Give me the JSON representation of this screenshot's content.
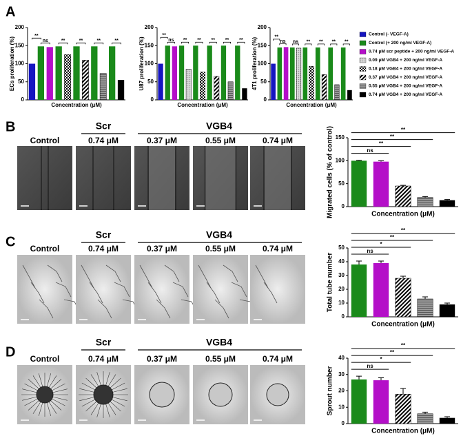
{
  "panels": [
    "A",
    "B",
    "C",
    "D"
  ],
  "legend": [
    {
      "name": "Control (- VEGF-A)",
      "fill": "#1515c0"
    },
    {
      "name": "Control (+ 200 ng/ml VEGF-A)",
      "fill": "#1a8a1a"
    },
    {
      "name": "0.74 μM scr peptide + 200 ng/ml VEGF-A",
      "fill": "#b40fc8"
    },
    {
      "name": "0.09 μM VGB4 + 200 ng/ml VEGF-A",
      "fill": "dots"
    },
    {
      "name": "0.18 μM VGB4 + 200 ng/ml VEGF-A",
      "fill": "checker"
    },
    {
      "name": "0.37 μM VGB4 + 200 ng/ml VEGF-A",
      "fill": "stripe"
    },
    {
      "name": "0.55 μM VGB4 + 200 ng/ml VEGF-A",
      "fill": "gray"
    },
    {
      "name": "0.74 μM VGB4 + 200 ng/ml VEGF-A",
      "fill": "#000000"
    }
  ],
  "image_rows": [
    {
      "groups": [
        "Scr",
        "VGB4"
      ],
      "labels": [
        "Control",
        "0.74 μM",
        "0.37 μM",
        "0.55 μM",
        "0.74 μM"
      ]
    },
    {
      "groups": [
        "Scr",
        "VGB4"
      ],
      "labels": [
        "Control",
        "0.74 μM",
        "0.37 μM",
        "0.55 μM",
        "0.74 μM"
      ]
    },
    {
      "groups": [
        "Scr",
        "VGB4"
      ],
      "labels": [
        "Control",
        "0.74 μM",
        "0.37 μM",
        "0.55 μM",
        "0.74 μM"
      ]
    }
  ],
  "chart_data": [
    {
      "type": "bar",
      "ylabel": "ECs proliferation (%)",
      "xlabel": "Concentration (μM)",
      "values": [
        100,
        148,
        146,
        148,
        125,
        148,
        110,
        148,
        73,
        148,
        55
      ],
      "fills": [
        "#1515c0",
        "#1a8a1a",
        "#b40fc8",
        "#1a8a1a",
        "checker",
        "#1a8a1a",
        "stripe",
        "#1a8a1a",
        "gray",
        "#1a8a1a",
        "#000000"
      ],
      "annotations": [
        "**",
        "ns",
        "**",
        "**",
        "**",
        "**"
      ],
      "ylim": [
        0,
        200
      ],
      "yticks": [
        0,
        50,
        100,
        150,
        200
      ]
    },
    {
      "type": "bar",
      "ylabel": "U87 proliferation (%)",
      "xlabel": "Concentration (μM)",
      "values": [
        100,
        150,
        148,
        150,
        85,
        150,
        77,
        150,
        65,
        150,
        50,
        150,
        32
      ],
      "fills": [
        "#1515c0",
        "#1a8a1a",
        "#b40fc8",
        "#1a8a1a",
        "dots",
        "#1a8a1a",
        "checker",
        "#1a8a1a",
        "stripe",
        "#1a8a1a",
        "gray",
        "#1a8a1a",
        "#000000"
      ],
      "annotations": [
        "**",
        "ns",
        "**",
        "**",
        "**",
        "**",
        "**"
      ],
      "ylim": [
        0,
        200
      ],
      "yticks": [
        0,
        50,
        100,
        150,
        200
      ]
    },
    {
      "type": "bar",
      "ylabel": "4T1 proliferation (%)",
      "xlabel": "Concentration (μM)",
      "values": [
        100,
        145,
        146,
        145,
        143,
        145,
        93,
        145,
        70,
        145,
        42,
        145,
        27
      ],
      "fills": [
        "#1515c0",
        "#1a8a1a",
        "#b40fc8",
        "#1a8a1a",
        "dots",
        "#1a8a1a",
        "checker",
        "#1a8a1a",
        "stripe",
        "#1a8a1a",
        "gray",
        "#1a8a1a",
        "#000000"
      ],
      "annotations": [
        "**",
        "ns",
        "ns",
        "**",
        "**",
        "**",
        "**"
      ],
      "ylim": [
        0,
        200
      ],
      "yticks": [
        0,
        50,
        100,
        150,
        200
      ]
    },
    {
      "type": "bar",
      "ylabel": "Migrated cells (% of control)",
      "xlabel": "Concentration (μM)",
      "values": [
        100,
        98,
        45,
        20,
        14
      ],
      "errors": [
        1,
        2,
        1.5,
        2,
        1.5
      ],
      "fills": [
        "#1a8a1a",
        "#b40fc8",
        "stripe",
        "gray",
        "#000000"
      ],
      "annotations": [
        "ns",
        "**",
        "**",
        "**"
      ],
      "ylim": [
        0,
        150
      ],
      "yticks": [
        0,
        50,
        100,
        150
      ]
    },
    {
      "type": "bar",
      "ylabel": "Total tube number",
      "xlabel": "Concentration (μM)",
      "values": [
        38,
        39,
        28,
        13,
        9
      ],
      "errors": [
        2.5,
        1.5,
        1.5,
        1.5,
        1
      ],
      "fills": [
        "#1a8a1a",
        "#b40fc8",
        "stripe",
        "gray",
        "#000000"
      ],
      "annotations": [
        "ns",
        "*",
        "**",
        "**"
      ],
      "ylim": [
        0,
        50
      ],
      "yticks": [
        0,
        10,
        20,
        30,
        40,
        50
      ]
    },
    {
      "type": "bar",
      "ylabel": "Sprout number",
      "xlabel": "Concentration (μM)",
      "values": [
        27,
        26.5,
        18,
        6,
        3.5
      ],
      "errors": [
        2,
        1.5,
        3.5,
        1,
        0.7
      ],
      "fills": [
        "#1a8a1a",
        "#b40fc8",
        "stripe",
        "gray",
        "#000000"
      ],
      "annotations": [
        "ns",
        "*",
        "**",
        "**"
      ],
      "ylim": [
        0,
        40
      ],
      "yticks": [
        0,
        10,
        20,
        30,
        40
      ]
    }
  ]
}
